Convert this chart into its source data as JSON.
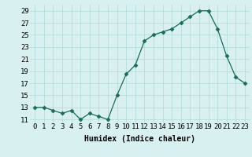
{
  "x": [
    0,
    1,
    2,
    3,
    4,
    5,
    6,
    7,
    8,
    9,
    10,
    11,
    12,
    13,
    14,
    15,
    16,
    17,
    18,
    19,
    20,
    21,
    22,
    23
  ],
  "y": [
    13,
    13,
    12.5,
    12,
    12.5,
    11,
    12,
    11.5,
    11,
    15,
    18.5,
    20,
    24,
    25,
    25.5,
    26,
    27,
    28,
    29,
    29,
    26,
    21.5,
    18,
    17
  ],
  "line_color": "#1a6b5a",
  "marker": "D",
  "marker_size": 2.5,
  "bg_color": "#d8f0f0",
  "grid_color": "#b0d8d8",
  "xlabel": "Humidex (Indice chaleur)",
  "xlim": [
    -0.5,
    23.5
  ],
  "ylim": [
    10.5,
    30
  ],
  "yticks": [
    11,
    13,
    15,
    17,
    19,
    21,
    23,
    25,
    27,
    29
  ],
  "xticks": [
    0,
    1,
    2,
    3,
    4,
    5,
    6,
    7,
    8,
    9,
    10,
    11,
    12,
    13,
    14,
    15,
    16,
    17,
    18,
    19,
    20,
    21,
    22,
    23
  ],
  "xlabel_fontsize": 7,
  "tick_fontsize": 6.5
}
